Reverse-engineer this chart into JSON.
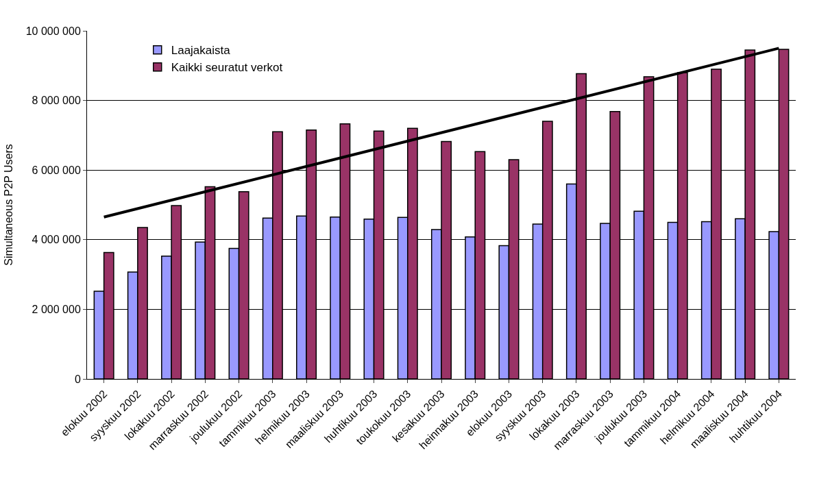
{
  "chart_data": {
    "type": "bar",
    "ylabel": "Simultaneous P2P Users",
    "categories": [
      "elokuu 2002",
      "syyskuu 2002",
      "lokakuu 2002",
      "marraskuu 2002",
      "joulukuu 2002",
      "tammikuu 2003",
      "helmikuu 2003",
      "maaliskuu 2003",
      "huhtikuu 2003",
      "toukokuu 2003",
      "kesakuu 2003",
      "heinnakuu 2003",
      "elokuu 2003",
      "syyskuu 2003",
      "lokakuu 2003",
      "marraskuu 2003",
      "joulukuu 2003",
      "tammikuu 2004",
      "helmikuu 2004",
      "maaliskuu 2004",
      "huhtikuu 2004"
    ],
    "series": [
      {
        "name": "Laajakaista",
        "color": "#9999ff",
        "values": [
          2520000,
          3070000,
          3530000,
          3930000,
          3750000,
          4620000,
          4680000,
          4650000,
          4590000,
          4640000,
          4290000,
          4080000,
          3830000,
          4450000,
          5600000,
          4470000,
          4820000,
          4500000,
          4520000,
          4600000,
          4230000
        ]
      },
      {
        "name": "Kaikki seuratut verkot",
        "color": "#993366",
        "values": [
          3630000,
          4350000,
          4980000,
          5520000,
          5380000,
          7100000,
          7150000,
          7330000,
          7120000,
          7200000,
          6820000,
          6530000,
          6300000,
          7400000,
          8770000,
          7680000,
          8680000,
          8800000,
          8900000,
          9450000,
          9470000
        ]
      },
      {
        "type": "line",
        "color": "#000000",
        "x": [
          "elokuu 2002",
          "huhtikuu 2004"
        ],
        "values": [
          4650000,
          9500000
        ]
      }
    ],
    "ylim": [
      0,
      10000000
    ],
    "yticks": [
      {
        "value": 0,
        "label": "0"
      },
      {
        "value": 2000000,
        "label": "2 000 000"
      },
      {
        "value": 4000000,
        "label": "4 000 000"
      },
      {
        "value": 6000000,
        "label": "6 000 000"
      },
      {
        "value": 8000000,
        "label": "8 000 000"
      },
      {
        "value": 10000000,
        "label": "10 000 000"
      }
    ],
    "grid": "y",
    "legend": "top left"
  }
}
